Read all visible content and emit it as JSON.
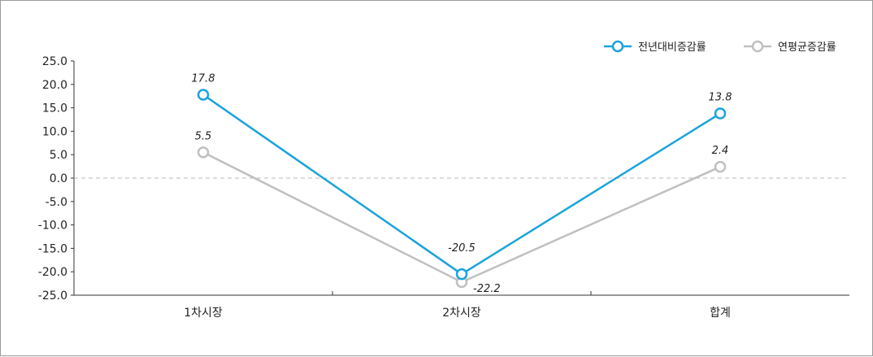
{
  "chart_data": {
    "type": "line",
    "categories": [
      "1차시장",
      "2차시장",
      "합계"
    ],
    "series": [
      {
        "name": "전년대비증감률",
        "values": [
          17.8,
          -20.5,
          13.8
        ],
        "labels": [
          "17.8",
          "-20.5",
          "13.8"
        ],
        "color": "#1ba3dd"
      },
      {
        "name": "연평균증감률",
        "values": [
          5.5,
          -22.2,
          2.4
        ],
        "labels": [
          "5.5",
          "-22.2",
          "2.4"
        ],
        "color": "#c0c0c0"
      }
    ],
    "ylim": [
      -25,
      25
    ],
    "yticks": [
      25,
      20,
      15,
      10,
      5,
      0,
      -5,
      -10,
      -15,
      -20,
      -25
    ],
    "ytick_labels": [
      "25.0",
      "20.0",
      "15.0",
      "10.0",
      "5.0",
      "0.0",
      "-5.0",
      "-10.0",
      "-15.0",
      "-20.0",
      "-25.0"
    ],
    "zero_line": "dashed",
    "legend_position": "top-right",
    "grid": false
  }
}
